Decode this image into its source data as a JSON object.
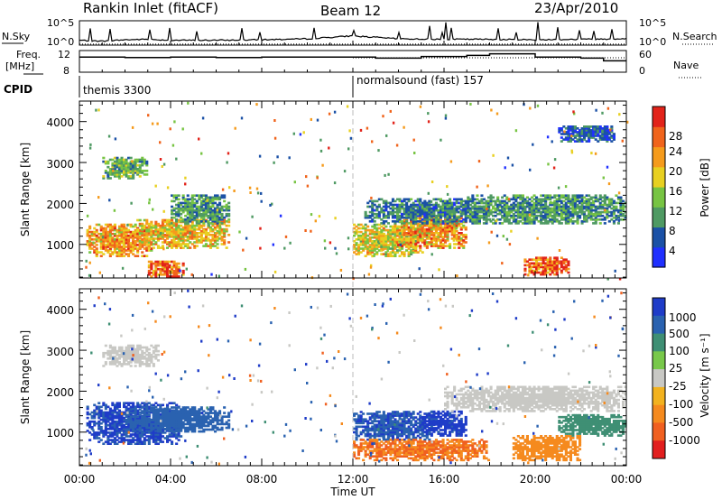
{
  "header": {
    "station": "Rankin Inlet (fitACF)",
    "beam": "Beam 12",
    "date": "23/Apr/2010"
  },
  "strips": {
    "nsky_label": "N.Sky",
    "nsky_ticks": [
      "10^5",
      "10^0"
    ],
    "nsearch_label": "N.Search",
    "nsearch_ticks": [
      "10^5",
      "10^0"
    ],
    "freq_label_top": "Freq.",
    "freq_label_bottom": "[MHz]",
    "freq_ticks": [
      "12",
      "8"
    ],
    "nave_label": "Nave",
    "nave_ticks": [
      "60",
      "0"
    ],
    "cpid_label": "CPID",
    "cpid_segments": [
      {
        "label": "themis 3300",
        "start_hour": 0
      },
      {
        "label": "normalsound (fast) 157",
        "start_hour": 12
      }
    ]
  },
  "axes": {
    "ylabel": "Slant Range [km]",
    "xlabel": "Time UT",
    "x_ticks": [
      "00:00",
      "04:00",
      "08:00",
      "12:00",
      "16:00",
      "20:00",
      "00:00"
    ],
    "y_ticks": [
      "1000",
      "2000",
      "3000",
      "4000"
    ]
  },
  "colorbars": {
    "power": {
      "title": "Power [dB]",
      "ticks": [
        "4",
        "8",
        "12",
        "16",
        "20",
        "24",
        "28"
      ],
      "colors": [
        "#2030ff",
        "#1b51a6",
        "#4f9a63",
        "#77c443",
        "#e8d021",
        "#f59b1c",
        "#f0641c",
        "#e2231a"
      ]
    },
    "velocity": {
      "title": "Velocity [m s⁻¹]",
      "ticks": [
        "1000",
        "500",
        "100",
        "25",
        "-25",
        "-100",
        "-500",
        "-1000"
      ],
      "colors": [
        "#1f3cc8",
        "#2a62b0",
        "#3f8f74",
        "#78c84a",
        "#c8c8c4",
        "#f2b21f",
        "#f58a1e",
        "#f06020",
        "#e21e1e"
      ]
    }
  },
  "chart_data": [
    {
      "type": "line",
      "title": "N.Sky / N.Search",
      "xlim": [
        0,
        24
      ],
      "ylim_log10": [
        0,
        5
      ],
      "series": [
        {
          "name": "N.Sky",
          "x": [
            0,
            1,
            2,
            3,
            4,
            6,
            8,
            10,
            12,
            14,
            16,
            18,
            20,
            22,
            24
          ],
          "y_log10": [
            1.0,
            0.8,
            1.1,
            1.2,
            1.0,
            1.0,
            1.1,
            1.3,
            1.9,
            1.3,
            1.2,
            1.2,
            1.1,
            1.2,
            1.3
          ]
        },
        {
          "name": "N.Search",
          "x": [
            0,
            24
          ],
          "y_log10": [
            0.2,
            0.2
          ]
        }
      ]
    },
    {
      "type": "line",
      "title": "Freq. / Nave",
      "xlim": [
        0,
        24
      ],
      "series": [
        {
          "name": "Freq. [MHz]",
          "ylim": [
            8,
            12
          ],
          "x": [
            0,
            2,
            4,
            6,
            8,
            10,
            12,
            13,
            15,
            17,
            18,
            20,
            22,
            23,
            24
          ],
          "y": [
            10.8,
            10.7,
            10.8,
            10.7,
            10.8,
            10.8,
            10.8,
            10.6,
            10.9,
            11.1,
            11.4,
            10.8,
            10.6,
            10.1,
            10.1
          ]
        },
        {
          "name": "Nave",
          "ylim": [
            0,
            60
          ],
          "x": [
            12,
            24
          ],
          "y": [
            40,
            40
          ]
        }
      ]
    },
    {
      "type": "heatmap",
      "title": "Power [dB]",
      "xlabel": "Time UT",
      "ylabel": "Slant Range [km]",
      "xlim": [
        0,
        24
      ],
      "ylim": [
        180,
        4500
      ],
      "blobs": [
        {
          "t0": 0.3,
          "t1": 3.2,
          "r0": 700,
          "r1": 1500,
          "v": 22
        },
        {
          "t0": 1.0,
          "t1": 3.0,
          "r0": 2600,
          "r1": 3100,
          "v": 12
        },
        {
          "t0": 2.5,
          "t1": 6.5,
          "r0": 900,
          "r1": 1600,
          "v": 20
        },
        {
          "t0": 4.0,
          "t1": 6.5,
          "r0": 1500,
          "r1": 2200,
          "v": 10
        },
        {
          "t0": 3.0,
          "t1": 4.5,
          "r0": 200,
          "r1": 600,
          "v": 26
        },
        {
          "t0": 12.0,
          "t1": 15.0,
          "r0": 700,
          "r1": 1500,
          "v": 18
        },
        {
          "t0": 14.0,
          "t1": 17.0,
          "r0": 900,
          "r1": 1700,
          "v": 22
        },
        {
          "t0": 12.5,
          "t1": 18.0,
          "r0": 1500,
          "r1": 2100,
          "v": 8
        },
        {
          "t0": 17.0,
          "t1": 24.0,
          "r0": 1500,
          "r1": 2200,
          "v": 10
        },
        {
          "t0": 19.5,
          "t1": 21.5,
          "r0": 250,
          "r1": 700,
          "v": 27
        },
        {
          "t0": 21.0,
          "t1": 23.5,
          "r0": 3500,
          "r1": 3900,
          "v": 6
        }
      ]
    },
    {
      "type": "heatmap",
      "title": "Velocity [m s⁻¹]",
      "xlabel": "Time UT",
      "ylabel": "Slant Range [km]",
      "xlim": [
        0,
        24
      ],
      "ylim": [
        180,
        4500
      ],
      "blobs": [
        {
          "t0": 0.3,
          "t1": 4.5,
          "r0": 700,
          "r1": 1700,
          "v": 800
        },
        {
          "t0": 2.0,
          "t1": 6.5,
          "r0": 1000,
          "r1": 1600,
          "v": 600
        },
        {
          "t0": 1.0,
          "t1": 3.5,
          "r0": 2600,
          "r1": 3100,
          "v": 0
        },
        {
          "t0": 12.0,
          "t1": 15.5,
          "r0": 800,
          "r1": 1500,
          "v": 700
        },
        {
          "t0": 15.0,
          "t1": 17.0,
          "r0": 900,
          "r1": 1500,
          "v": 900
        },
        {
          "t0": 12.0,
          "t1": 18.0,
          "r0": 300,
          "r1": 800,
          "v": -300
        },
        {
          "t0": 16.0,
          "t1": 24.0,
          "r0": 1500,
          "r1": 2100,
          "v": 0
        },
        {
          "t0": 19.0,
          "t1": 22.0,
          "r0": 300,
          "r1": 900,
          "v": -200
        },
        {
          "t0": 21.0,
          "t1": 24.0,
          "r0": 900,
          "r1": 1400,
          "v": 200
        }
      ]
    }
  ]
}
